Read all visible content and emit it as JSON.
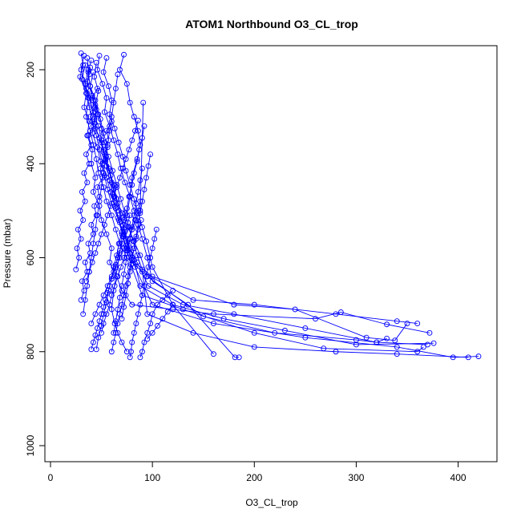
{
  "chart_data": {
    "type": "scatter",
    "title": "ATOM1 Northbound O3_CL_trop",
    "xlabel": "O3_CL_trop",
    "ylabel": "Pressure (mbar)",
    "xlim": [
      0,
      440
    ],
    "ylim": [
      1035,
      160
    ],
    "y_reversed": true,
    "x_ticks": [
      0,
      100,
      200,
      300,
      400
    ],
    "y_ticks": [
      200,
      400,
      600,
      800,
      1000
    ],
    "grid": false,
    "legend": "none",
    "style": "lines-and-open-circles",
    "color": "#0000ff",
    "series": [
      {
        "x": [
          30,
          32,
          29,
          35,
          33,
          38,
          36,
          41,
          40,
          44,
          42,
          48,
          50,
          55,
          60,
          58,
          65,
          70,
          80,
          120,
          160,
          260,
          285,
          330,
          372
        ],
        "y": [
          165,
          190,
          215,
          250,
          280,
          310,
          340,
          370,
          400,
          430,
          460,
          490,
          520,
          550,
          580,
          610,
          640,
          670,
          700,
          710,
          720,
          730,
          716,
          742,
          760
        ]
      },
      {
        "x": [
          33,
          30,
          34,
          37,
          35,
          39,
          42,
          45,
          47,
          52,
          55,
          60,
          64,
          68,
          75,
          90,
          140,
          200,
          280,
          340,
          360
        ],
        "y": [
          170,
          200,
          230,
          260,
          300,
          330,
          360,
          390,
          420,
          450,
          480,
          510,
          540,
          570,
          600,
          630,
          690,
          700,
          720,
          735,
          740
        ]
      },
      {
        "x": [
          36,
          38,
          35,
          40,
          43,
          41,
          46,
          49,
          53,
          56,
          60,
          66,
          70,
          74,
          80,
          100,
          180,
          240,
          310,
          338,
          350
        ],
        "y": [
          175,
          210,
          240,
          275,
          305,
          335,
          365,
          395,
          425,
          455,
          485,
          515,
          545,
          575,
          605,
          640,
          700,
          710,
          770,
          776,
          740
        ]
      },
      {
        "x": [
          40,
          37,
          39,
          42,
          46,
          44,
          50,
          54,
          58,
          62,
          65,
          70,
          76,
          82,
          88,
          95,
          150,
          220,
          300,
          320,
          330
        ],
        "y": [
          180,
          205,
          235,
          265,
          295,
          325,
          355,
          385,
          415,
          445,
          475,
          505,
          535,
          565,
          595,
          640,
          725,
          760,
          775,
          780,
          772
        ]
      },
      {
        "x": [
          34,
          31,
          36,
          38,
          41,
          45,
          48,
          51,
          55,
          59,
          63,
          67,
          72,
          78,
          85,
          96,
          130,
          180,
          250,
          320,
          370
        ],
        "y": [
          190,
          220,
          250,
          280,
          310,
          340,
          370,
          400,
          430,
          460,
          490,
          520,
          550,
          580,
          610,
          660,
          700,
          720,
          750,
          780,
          785
        ]
      },
      {
        "x": [
          45,
          43,
          47,
          44,
          49,
          52,
          56,
          54,
          59,
          62,
          66,
          70,
          73,
          77,
          82,
          88,
          120,
          170,
          230,
          300,
          376
        ],
        "y": [
          185,
          215,
          245,
          275,
          305,
          335,
          365,
          395,
          425,
          455,
          485,
          515,
          545,
          575,
          605,
          660,
          700,
          730,
          755,
          785,
          782
        ]
      },
      {
        "x": [
          39,
          36,
          41,
          45,
          43,
          48,
          52,
          55,
          58,
          61,
          64,
          68,
          71,
          75,
          79,
          90,
          130,
          200,
          268,
          360,
          366
        ],
        "y": [
          195,
          225,
          255,
          285,
          315,
          345,
          375,
          405,
          435,
          465,
          495,
          525,
          555,
          585,
          615,
          680,
          710,
          760,
          793,
          800,
          790
        ]
      },
      {
        "x": [
          37,
          34,
          38,
          42,
          47,
          50,
          53,
          57,
          60,
          63,
          67,
          71,
          74,
          78,
          83,
          100,
          160,
          250,
          340,
          395,
          420
        ],
        "y": [
          200,
          230,
          260,
          290,
          320,
          350,
          380,
          410,
          440,
          470,
          500,
          530,
          560,
          590,
          620,
          700,
          740,
          770,
          790,
          812,
          810
        ]
      },
      {
        "x": [
          42,
          39,
          44,
          47,
          50,
          53,
          57,
          61,
          65,
          69,
          73,
          77,
          81,
          85,
          90,
          95,
          140,
          200,
          280,
          340,
          410
        ],
        "y": [
          205,
          235,
          265,
          295,
          325,
          355,
          385,
          415,
          445,
          475,
          505,
          535,
          565,
          595,
          625,
          720,
          760,
          790,
          800,
          805,
          812
        ]
      },
      {
        "x": [
          48,
          46,
          51,
          55,
          53,
          58,
          62,
          66,
          69,
          73,
          78,
          82,
          86,
          90,
          95,
          100,
          135,
          181,
          185
        ],
        "y": [
          170,
          200,
          230,
          260,
          290,
          320,
          350,
          380,
          410,
          440,
          470,
          500,
          530,
          560,
          600,
          650,
          700,
          812,
          812
        ]
      },
      {
        "x": [
          55,
          52,
          57,
          60,
          58,
          63,
          67,
          71,
          74,
          78,
          82,
          86,
          90,
          94,
          100,
          120,
          160
        ],
        "y": [
          175,
          205,
          235,
          265,
          295,
          325,
          355,
          385,
          415,
          445,
          475,
          505,
          535,
          565,
          620,
          700,
          805
        ]
      },
      {
        "x": [
          72,
          68,
          75,
          78,
          82,
          86,
          88,
          85,
          80,
          78,
          75,
          70,
          68,
          65,
          62,
          60,
          63,
          66,
          70,
          75
        ],
        "y": [
          168,
          200,
          230,
          270,
          300,
          330,
          360,
          390,
          430,
          470,
          510,
          550,
          590,
          630,
          670,
          710,
          740,
          760,
          780,
          800
        ]
      },
      {
        "x": [
          25,
          28,
          26,
          30,
          27,
          32,
          29,
          34,
          31,
          36,
          33,
          38,
          35,
          40,
          37,
          42,
          39,
          44,
          41,
          46
        ],
        "y": [
          625,
          600,
          580,
          560,
          540,
          520,
          500,
          480,
          460,
          440,
          420,
          400,
          380,
          360,
          340,
          320,
          300,
          280,
          260,
          240
        ]
      },
      {
        "x": [
          30,
          33,
          31,
          36,
          34,
          39,
          37,
          42,
          40,
          45,
          43,
          48,
          46,
          51,
          49,
          54,
          52,
          57,
          55,
          60
        ],
        "y": [
          690,
          670,
          650,
          630,
          610,
          590,
          570,
          550,
          530,
          510,
          490,
          470,
          450,
          430,
          410,
          390,
          370,
          350,
          330,
          310
        ]
      },
      {
        "x": [
          40,
          42,
          44,
          46,
          48,
          50,
          52,
          54,
          56,
          58,
          60,
          62,
          64,
          66,
          68,
          70,
          72,
          74,
          76,
          78
        ],
        "y": [
          795,
          780,
          765,
          750,
          735,
          720,
          705,
          690,
          675,
          660,
          645,
          630,
          615,
          600,
          585,
          570,
          555,
          540,
          525,
          510
        ]
      },
      {
        "x": [
          45,
          47,
          50,
          52,
          55,
          57,
          60,
          62,
          65,
          67,
          70,
          72,
          75,
          77,
          80,
          82,
          85,
          87,
          90,
          92
        ],
        "y": [
          795,
          770,
          745,
          720,
          695,
          670,
          645,
          620,
          595,
          570,
          545,
          520,
          495,
          470,
          445,
          420,
          395,
          370,
          345,
          320
        ]
      },
      {
        "x": [
          50,
          52,
          55,
          58,
          60,
          63,
          66,
          69,
          72,
          75,
          78,
          80,
          83,
          86,
          88
        ],
        "y": [
          760,
          740,
          720,
          700,
          680,
          660,
          640,
          620,
          600,
          580,
          560,
          540,
          520,
          500,
          480
        ]
      },
      {
        "x": [
          60,
          62,
          64,
          66,
          68,
          70,
          72,
          74,
          76,
          78,
          80,
          82,
          84,
          86,
          89
        ],
        "y": [
          800,
          780,
          760,
          740,
          720,
          700,
          680,
          660,
          640,
          620,
          600,
          580,
          560,
          540,
          520
        ]
      },
      {
        "x": [
          62,
          64,
          66,
          68,
          70,
          72,
          74,
          76,
          78,
          80,
          82,
          84,
          86,
          88,
          90
        ],
        "y": [
          760,
          735,
          710,
          685,
          660,
          635,
          610,
          585,
          560,
          535,
          510,
          485,
          460,
          435,
          410
        ]
      },
      {
        "x": [
          70,
          72,
          74,
          76,
          78,
          80,
          82,
          84,
          86,
          88,
          90,
          92,
          94,
          96,
          98
        ],
        "y": [
          730,
          705,
          680,
          655,
          630,
          605,
          580,
          555,
          530,
          505,
          480,
          455,
          430,
          405,
          380
        ]
      },
      {
        "x": [
          78,
          79,
          80,
          82,
          84,
          86,
          88,
          90,
          92,
          94,
          96,
          98,
          100,
          102,
          104
        ],
        "y": [
          812,
          800,
          780,
          760,
          740,
          720,
          700,
          680,
          660,
          640,
          620,
          600,
          580,
          560,
          540
        ]
      },
      {
        "x": [
          88,
          90,
          92,
          95,
          98,
          100,
          105,
          110,
          115,
          120
        ],
        "y": [
          812,
          800,
          780,
          760,
          740,
          720,
          700,
          690,
          680,
          670
        ]
      },
      {
        "x": [
          95,
          100,
          105,
          110,
          115,
          120
        ],
        "y": [
          773,
          760,
          745,
          730,
          715,
          700
        ]
      },
      {
        "x": [
          40,
          44,
          48,
          52,
          56,
          60,
          64,
          68,
          72,
          76,
          80,
          84,
          88,
          91
        ],
        "y": [
          740,
          720,
          700,
          680,
          660,
          640,
          620,
          600,
          580,
          560,
          540,
          520,
          500,
          270
        ]
      },
      {
        "x": [
          35,
          38,
          41,
          44,
          47,
          50,
          53,
          56,
          59,
          62,
          65,
          68,
          71,
          74,
          77,
          80,
          83,
          86
        ],
        "y": [
          650,
          630,
          610,
          590,
          570,
          550,
          530,
          510,
          490,
          470,
          450,
          430,
          410,
          390,
          370,
          350,
          330,
          308
        ]
      },
      {
        "x": [
          32,
          34,
          36,
          38,
          40,
          42,
          44,
          46,
          48,
          50,
          52,
          54,
          56,
          58,
          60,
          62,
          64,
          66
        ],
        "y": [
          720,
          690,
          660,
          630,
          600,
          570,
          540,
          510,
          480,
          450,
          420,
          390,
          360,
          330,
          300,
          270,
          240,
          210
        ]
      }
    ]
  }
}
